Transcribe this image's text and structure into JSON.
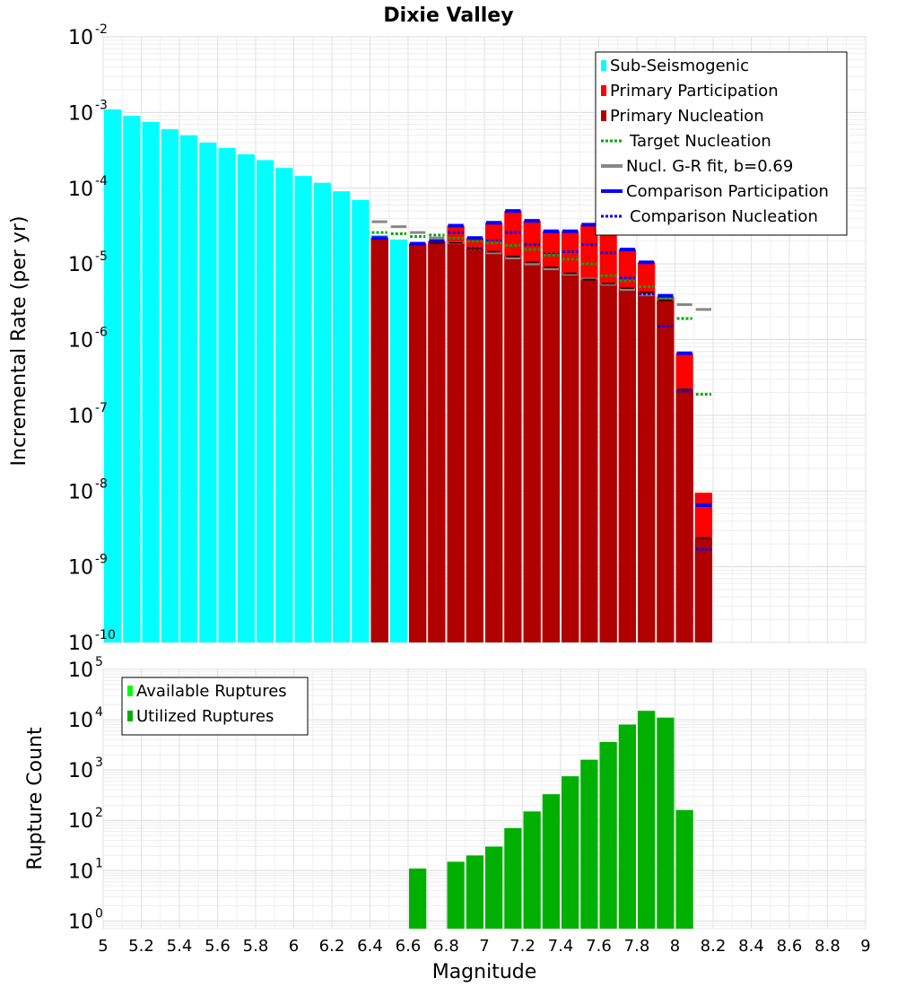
{
  "chart_data": [
    {
      "type": "bar",
      "title": "Dixie Valley",
      "xlabel": "Magnitude",
      "ylabel": "Incremental Rate (per yr)",
      "yscale": "log",
      "ylim": [
        1e-10,
        0.01
      ],
      "xlim": [
        5,
        9
      ],
      "bin_width": 0.1,
      "legend_position": "top-right",
      "ytick_exponents": [
        -10,
        -9,
        -8,
        -7,
        -6,
        -5,
        -4,
        -3,
        -2
      ],
      "legend": [
        {
          "label": "Sub-Seismogenic",
          "style": "bar",
          "color": "#00ffff"
        },
        {
          "label": "Primary Participation",
          "style": "bar",
          "color": "#ff0000"
        },
        {
          "label": "Primary Nucleation",
          "style": "bar",
          "color": "#b00000"
        },
        {
          "label": "Target Nucleation",
          "style": "dotted",
          "color": "#00aa00"
        },
        {
          "label": "Nucl. G-R fit, b=0.69",
          "style": "solid",
          "color": "#888888"
        },
        {
          "label": "Comparison Participation",
          "style": "solid",
          "color": "#0000ff"
        },
        {
          "label": "Comparison Nucleation",
          "style": "dotted",
          "color": "#0000ff"
        }
      ],
      "series": [
        {
          "name": "Sub-Seismogenic",
          "color": "#00ffff",
          "x": [
            5.05,
            5.15,
            5.25,
            5.35,
            5.45,
            5.55,
            5.65,
            5.75,
            5.85,
            5.95,
            6.05,
            6.15,
            6.25,
            6.35,
            6.45,
            6.55
          ],
          "values": [
            0.0011,
            0.0009,
            0.00075,
            0.0006,
            0.0005,
            0.0004,
            0.00034,
            0.00028,
            0.000235,
            0.000185,
            0.000145,
            0.000118,
            9.1e-05,
            7e-05,
            2.4e-05,
            2.1e-05
          ]
        },
        {
          "name": "Primary Participation",
          "color": "#ff0000",
          "x": [
            6.45,
            6.65,
            6.75,
            6.85,
            6.95,
            7.05,
            7.15,
            7.25,
            7.35,
            7.45,
            7.55,
            7.65,
            7.75,
            7.85,
            7.95,
            8.05,
            8.15
          ],
          "values": [
            2.2e-05,
            1.85e-05,
            2e-05,
            3.2e-05,
            2.2e-05,
            3.5e-05,
            5e-05,
            3.7e-05,
            2.7e-05,
            2.7e-05,
            3.3e-05,
            2.7e-05,
            1.55e-05,
            1.05e-05,
            3.7e-06,
            6.6e-07,
            9.5e-09
          ]
        },
        {
          "name": "Primary Nucleation",
          "color": "#b00000",
          "x": [
            6.45,
            6.65,
            6.75,
            6.85,
            6.95,
            7.05,
            7.15,
            7.25,
            7.35,
            7.45,
            7.55,
            7.65,
            7.75,
            7.85,
            7.95,
            8.05,
            8.15
          ],
          "values": [
            2.2e-05,
            1.85e-05,
            1.9e-05,
            1.9e-05,
            1.6e-05,
            1.45e-05,
            1.25e-05,
            1.05e-05,
            9e-06,
            7.5e-06,
            6.2e-06,
            5.5e-06,
            4.8e-06,
            4.2e-06,
            3.3e-06,
            2.2e-07,
            2.4e-09
          ]
        },
        {
          "name": "Target Nucleation",
          "color": "#00aa00",
          "style": "dotted",
          "x": [
            6.45,
            6.55,
            6.65,
            6.75,
            6.85,
            6.95,
            7.05,
            7.15,
            7.25,
            7.35,
            7.45,
            7.55,
            7.65,
            7.75,
            7.85,
            7.95,
            8.05,
            8.15
          ],
          "values": [
            2.6e-05,
            2.5e-05,
            2.3e-05,
            2.4e-05,
            2.2e-05,
            2e-05,
            1.9e-05,
            1.75e-05,
            1.55e-05,
            1.3e-05,
            1.15e-05,
            1e-05,
            7e-06,
            6e-06,
            5e-06,
            3.5e-06,
            1.9e-06,
            1.9e-07
          ]
        },
        {
          "name": "Nucl. G-R fit, b=0.69",
          "color": "#888888",
          "style": "solid",
          "x": [
            6.45,
            6.55,
            6.65,
            6.75,
            6.85,
            6.95,
            7.05,
            7.15,
            7.25,
            7.35,
            7.45,
            7.55,
            7.65,
            7.75,
            7.85,
            7.95,
            8.05,
            8.15
          ],
          "values": [
            3.6e-05,
            3.1e-05,
            2.6e-05,
            2.2e-05,
            1.9e-05,
            1.6e-05,
            1.4e-05,
            1.2e-05,
            1e-05,
            8.6e-06,
            7.3e-06,
            6.3e-06,
            5.4e-06,
            4.6e-06,
            3.9e-06,
            3.4e-06,
            2.9e-06,
            2.5e-06
          ]
        },
        {
          "name": "Comparison Participation",
          "color": "#0000ff",
          "style": "solid",
          "x": [
            6.45,
            6.65,
            6.75,
            6.85,
            6.95,
            7.05,
            7.15,
            7.25,
            7.35,
            7.45,
            7.55,
            7.65,
            7.75,
            7.85,
            7.95,
            8.05,
            8.15
          ],
          "values": [
            2.2e-05,
            1.85e-05,
            2e-05,
            3.2e-05,
            2.2e-05,
            3.5e-05,
            5e-05,
            3.7e-05,
            2.7e-05,
            2.7e-05,
            3.3e-05,
            2.7e-05,
            1.55e-05,
            1.05e-05,
            3.8e-06,
            6.6e-07,
            6.5e-09
          ]
        },
        {
          "name": "Comparison Nucleation",
          "color": "#0000ff",
          "style": "dotted",
          "x": [
            6.45,
            6.65,
            6.75,
            6.85,
            6.95,
            7.05,
            7.15,
            7.25,
            7.35,
            7.45,
            7.55,
            7.65,
            7.75,
            7.85,
            7.95,
            8.05,
            8.15
          ],
          "values": [
            2.2e-05,
            1.85e-05,
            1.9e-05,
            2.6e-05,
            1.6e-05,
            2e-05,
            2.6e-05,
            1.8e-05,
            1.35e-05,
            1.45e-05,
            1.8e-05,
            1.4e-05,
            6.5e-06,
            4e-06,
            1.5e-06,
            2.1e-07,
            1.7e-09
          ]
        }
      ]
    },
    {
      "type": "bar",
      "xlabel": "Magnitude",
      "ylabel": "Rupture Count",
      "yscale": "log",
      "ylim": [
        0.7,
        100000
      ],
      "xlim": [
        5,
        9
      ],
      "bin_width": 0.1,
      "legend_position": "top-left",
      "ytick_exponents": [
        0,
        1,
        2,
        3,
        4,
        5
      ],
      "xticks": [
        "5",
        "5.2",
        "5.4",
        "5.6",
        "5.8",
        "6",
        "6.2",
        "6.4",
        "6.6",
        "6.8",
        "7",
        "7.2",
        "7.4",
        "7.6",
        "7.8",
        "8",
        "8.2",
        "8.4",
        "8.6",
        "8.8",
        "9"
      ],
      "legend": [
        {
          "label": "Available Ruptures",
          "style": "bar",
          "color": "#00ff00"
        },
        {
          "label": "Utilized Ruptures",
          "style": "bar",
          "color": "#00b000"
        }
      ],
      "series": [
        {
          "name": "Utilized Ruptures",
          "color": "#00b000",
          "x": [
            6.65,
            6.85,
            6.95,
            7.05,
            7.15,
            7.25,
            7.35,
            7.45,
            7.55,
            7.65,
            7.75,
            7.85,
            7.95,
            8.05
          ],
          "values": [
            11,
            15,
            20,
            30,
            70,
            150,
            330,
            750,
            1600,
            3600,
            8000,
            15000,
            11000,
            160
          ]
        }
      ]
    }
  ]
}
